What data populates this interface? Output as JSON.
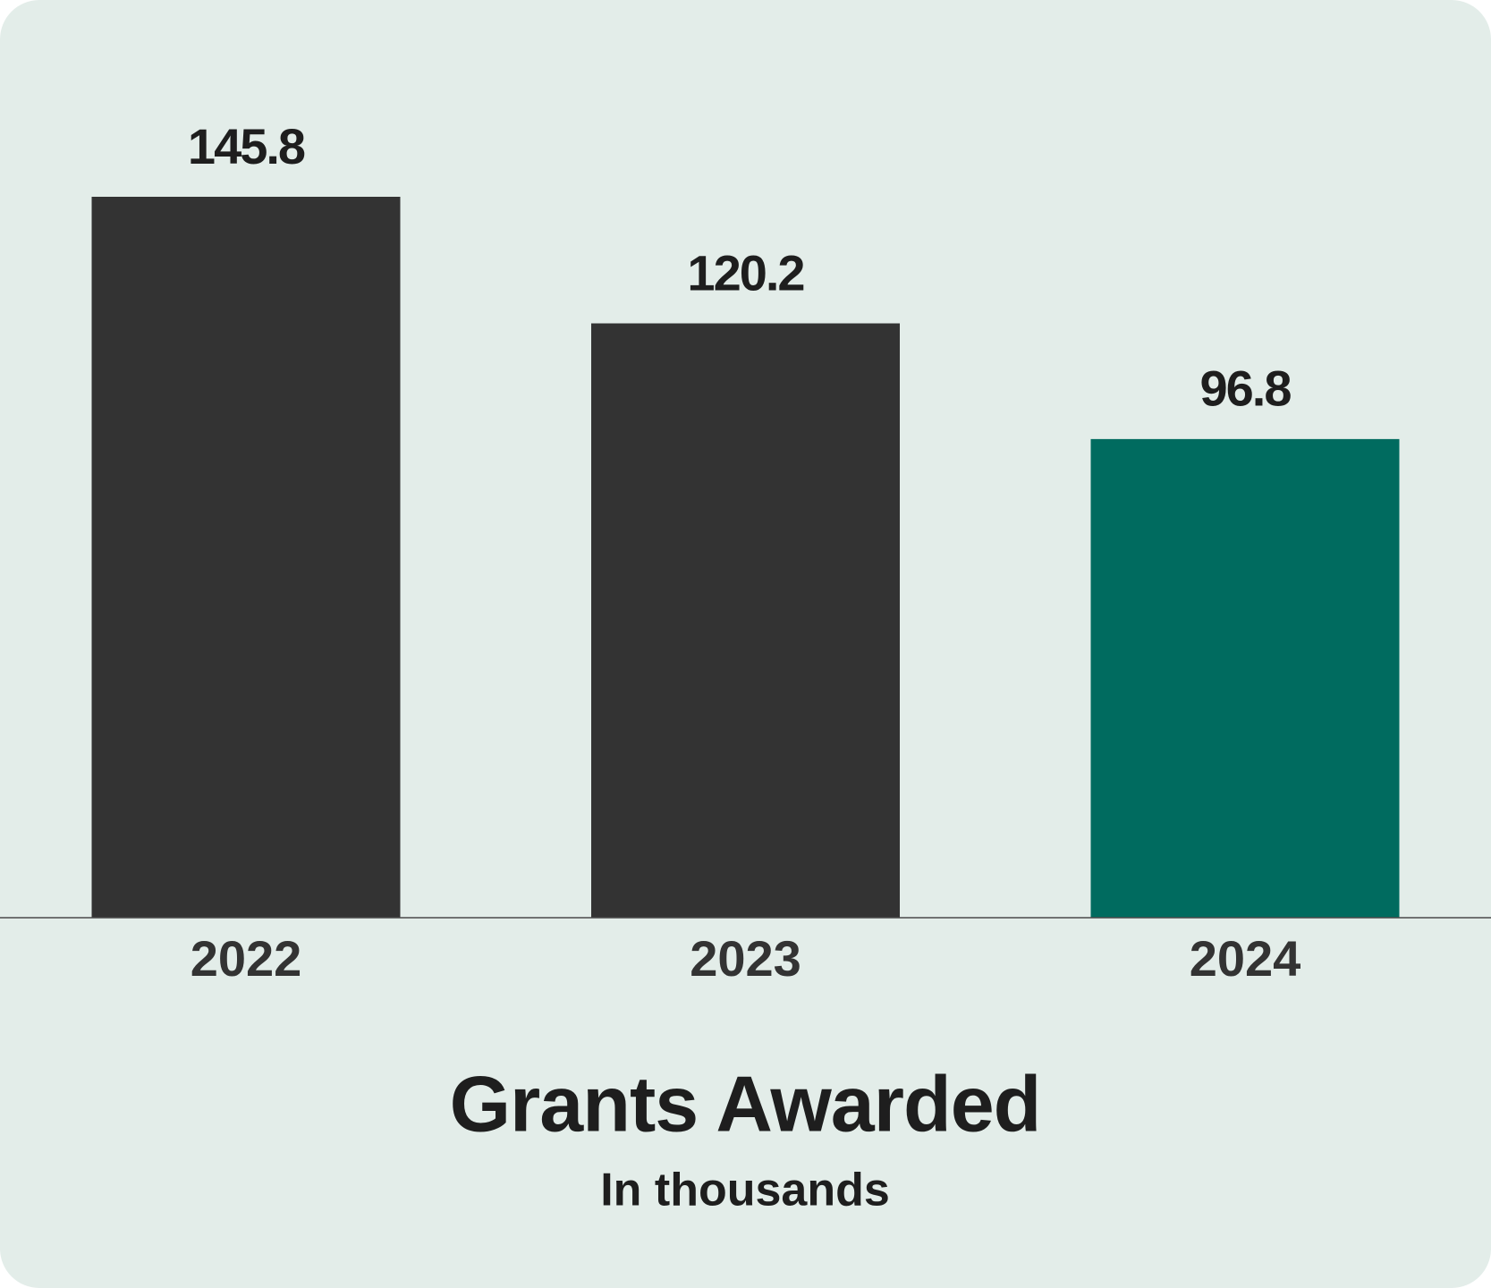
{
  "chart_data": {
    "type": "bar",
    "title": "Grants Awarded",
    "subtitle": "In thousands",
    "categories": [
      "2022",
      "2023",
      "2024"
    ],
    "values": [
      145.8,
      120.2,
      96.8
    ],
    "colors": [
      "#333333",
      "#333333",
      "#006b5f"
    ]
  }
}
